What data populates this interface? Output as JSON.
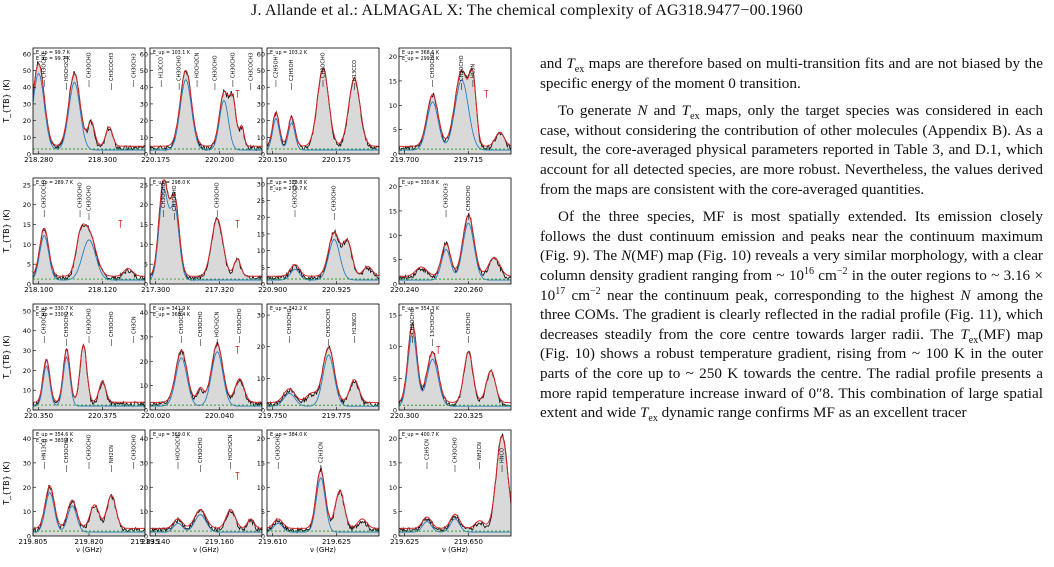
{
  "page": {
    "header": "J. Allande et al.: ALMAGAL X: The chemical complexity of AG318.9477−00.1960"
  },
  "figure": {
    "ylabel": "T_{TB} (K)",
    "xlabel": "ν (GHz)",
    "colors": {
      "data": "#111111",
      "fill": "#d9d9d9",
      "total_model": "#d62728",
      "species_model": "#2a7fbf",
      "noise": "#2ca02c",
      "unidentified": "#d62728"
    },
    "panels": [
      {
        "tex": [
          "E_up = 99.7 K",
          "E_up = 99.7 K"
        ],
        "yticks": [
          0,
          10,
          20,
          30,
          40,
          50,
          60
        ],
        "xticks": [
          "218.280",
          "218.300"
        ],
        "labels": [
          "CH3OCHO",
          "HOCH2CN",
          "CH3OCHO",
          "CH3COCH3",
          "CH3OCH3"
        ]
      },
      {
        "tex": [
          "E_up = 103.1 K"
        ],
        "yticks": [
          0,
          10,
          20,
          30,
          40,
          50,
          60
        ],
        "xticks": [
          "220.175",
          "220.200"
        ],
        "labels": [
          "H13CCO",
          "CH3OCHO",
          "HOCH2CN",
          "CH3OCHO",
          "CH3OCHO",
          "CH3COCH3"
        ]
      },
      {
        "tex": [
          "E_up = 103.2 K"
        ],
        "yticks": [
          0,
          10,
          20,
          30,
          40,
          50,
          60
        ],
        "xticks": [
          "220.150",
          "220.175"
        ],
        "labels": [
          "C2H5OH",
          "C2H5OH",
          "CH3OCHO",
          "H13CCO"
        ]
      },
      {
        "tex": [
          "E_up = 368.6 K",
          "E_up = 299.0 K"
        ],
        "yticks": [
          0,
          5,
          10,
          15,
          20
        ],
        "xticks": [
          "219.700",
          "219.715"
        ],
        "labels": [
          "CH3OCHO",
          "CH3OCHO",
          "HC3N"
        ]
      },
      {
        "tex": [
          "E_up = 289.7 K"
        ],
        "yticks": [
          0,
          5,
          10,
          15,
          20,
          25
        ],
        "xticks": [
          "218.100",
          "218.120"
        ],
        "labels": [
          "CH3COCH3",
          "CH3OCHO",
          "CH3OCHO"
        ]
      },
      {
        "tex": [
          "E_up = 298.0 K"
        ],
        "yticks": [
          0,
          5,
          10,
          15,
          20,
          25
        ],
        "xticks": [
          "217.300",
          "217.320"
        ],
        "labels": [
          "CH3OCHO",
          "CH3OCHO",
          "CH3OCHO"
        ]
      },
      {
        "tex": [
          "E_up = 320.8 K",
          "E_up = 270.7 K"
        ],
        "yticks": [
          0,
          5,
          10,
          15,
          20,
          25,
          30
        ],
        "xticks": [
          "220.900",
          "220.925"
        ],
        "labels": [
          "CH3COCH3",
          "CH3OCHO"
        ]
      },
      {
        "tex": [
          "E_up = 330.8 K"
        ],
        "yticks": [
          0,
          5,
          10,
          15,
          20
        ],
        "xticks": [
          "220.240",
          "220.260"
        ],
        "labels": [
          "CH3OCH3",
          "CH3OCHO"
        ]
      },
      {
        "tex": [
          "E_up = 330.7 K",
          "E_up = 330.7 K"
        ],
        "yticks": [
          0,
          10,
          20,
          30,
          40,
          50
        ],
        "xticks": [
          "220.350",
          "220.375"
        ],
        "labels": [
          "CH3OCHO",
          "CH3OCHO",
          "CH3OCHO",
          "CH3OCHO",
          "CH3CN"
        ]
      },
      {
        "tex": [
          "E_up = 341.9 K",
          "E_up = 368.4 K"
        ],
        "yticks": [
          0,
          10,
          20,
          30,
          40
        ],
        "xticks": [
          "220.020",
          "220.040"
        ],
        "labels": [
          "CH3OCHO",
          "HOCH2CN",
          "CH3OCHO",
          "CH3OCHO"
        ]
      },
      {
        "tex": [
          "E_up = 342.2 K"
        ],
        "yticks": [
          0,
          10,
          20,
          30
        ],
        "xticks": [
          "219.750",
          "219.775"
        ],
        "labels": [
          "CH3OCHO",
          "CH3COCH3",
          "H13NCO"
        ]
      },
      {
        "tex": [
          "E_up = 354.3 K"
        ],
        "yticks": [
          0,
          5,
          10,
          15
        ],
        "xticks": [
          "220.300",
          "220.325"
        ],
        "labels": [
          "CH3OCHO",
          "13CH3CHO",
          "CH3CHO"
        ]
      },
      {
        "tex": [
          "E_up = 354.6 K",
          "E_up = 383.8 K"
        ],
        "yticks": [
          0,
          10,
          20,
          30,
          40
        ],
        "xticks": [
          "219.805",
          "219.820",
          "219.835"
        ],
        "labels": [
          "HN13CO",
          "CH3OCHO",
          "CH3OCHO",
          "NH2CN",
          "CH3OCHO"
        ]
      },
      {
        "tex": [
          "E_up = 369.0 K"
        ],
        "yticks": [
          0,
          10,
          20,
          30,
          40
        ],
        "xticks": [
          "219.140",
          "219.160"
        ],
        "labels": [
          "HOCH2CN",
          "CH3OCHO",
          "HOCH2CN"
        ]
      },
      {
        "tex": [
          "E_up = 384.0 K"
        ],
        "yticks": [
          0,
          5,
          10,
          15,
          20
        ],
        "xticks": [
          "219.610",
          "219.625"
        ],
        "labels": [
          "CH3OCHO",
          "C2H3CN"
        ]
      },
      {
        "tex": [
          "E_up = 400.7 K"
        ],
        "yticks": [
          0,
          5,
          10,
          15,
          20
        ],
        "xticks": [
          "219.625",
          "219.650"
        ],
        "labels": [
          "C2H5CN",
          "CH3OCHO",
          "NH2CN",
          "HNCO"
        ]
      }
    ]
  },
  "paragraphs": {
    "p1": "and T_ex maps are therefore based on multi-transition fits and are not biased by the specific energy of the moment 0 transition.",
    "p2": "To generate N and T_ex maps, only the target species was considered in each case, without considering the contribution of other molecules (Appendix B). As a result, the core-averaged physical parameters reported in Table 3, and D.1, which account for all detected species, are more robust. Nevertheless, the values derived from the maps are consistent with the core-averaged quantities.",
    "p3": "Of the three species, MF is most spatially extended. Its emission closely follows the dust continuum emission and peaks near the continuum maximum (Fig. 9). The N(MF) map (Fig. 10) reveals a very similar morphology, with a clear column density gradient ranging from ~ 10^16 cm^−2 in the outer regions to ~ 3.16 × 10^17 cm^−2 near the continuum peak, corresponding to the highest N among the three COMs. The gradient is clearly reflected in the radial profile (Fig. 11), which decreases steadily from the core centre towards larger radii. The T_ex(MF) map (Fig. 10) shows a robust temperature gradient, rising from ~ 100 K in the outer parts of the core up to ~ 250 K towards the centre. The radial profile presents a more rapid temperature increase inward of 0″8. This combination of large spatial extent and wide T_ex dynamic range confirms MF as an excellent tracer"
  },
  "text_runs": {
    "p1": [
      "and ",
      "T",
      "ex",
      " maps are therefore based on multi-transition fits and are not biased by the specific energy of the moment 0 transition."
    ],
    "p2": [
      "To generate ",
      "N",
      " and ",
      "T",
      "ex",
      " maps, only the target species was considered in each case, without considering the contribution of other molecules (Appendix B). As a result, the core-averaged physical parameters reported in Table 3, and D.1, which account for all detected species, are more robust. Nevertheless, the val­ues derived from the maps are consistent with the core-averaged quantities."
    ],
    "p3a": [
      "Of the three species, MF is most spatially extended. Its emis­sion closely follows the dust continuum emission and peaks near the continuum maximum (Fig. 9). The ",
      "N",
      "(MF) map (Fig. 10) reveals a very similar morphology, with a clear column den­sity gradient ranging from ~ 10",
      "16",
      " cm",
      "−2",
      " in the outer regions to ~ 3.16 × 10",
      "17",
      " cm",
      "−2",
      " near the continuum peak, correspond­ing to the highest ",
      "N",
      " among the three COMs. The gradient is clearly reflected in the radial profile (Fig. 11), which decreases steadily from the core centre towards larger radii. The ",
      "T",
      "ex",
      "(MF) map (Fig. 10) shows a robust temperature gradient, rising from ~ 100 K in the outer parts of the core up to ~ 250 K towards the centre. The radial profile presents a more rapid temperature increase inward of 0″8. This combination of large spatial extent and wide ",
      "T",
      "ex",
      " dynamic range confirms MF as an excellent tracer"
    ]
  }
}
